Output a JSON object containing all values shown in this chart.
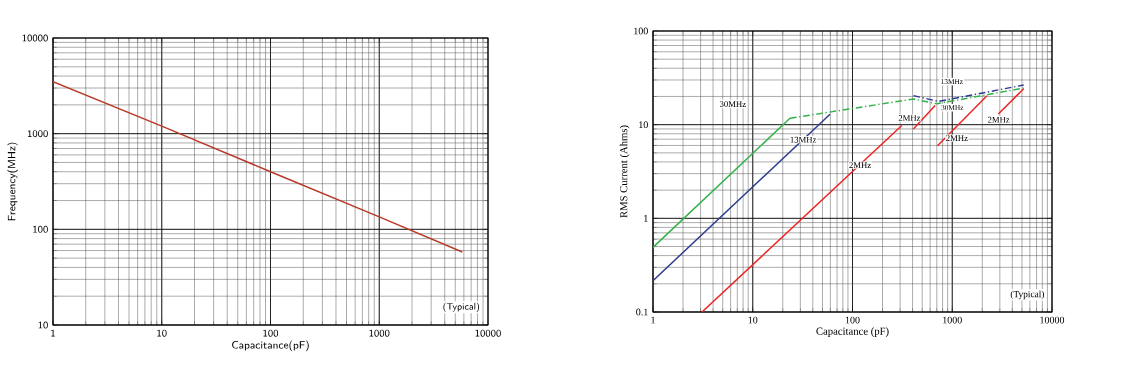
{
  "chart_data": [
    {
      "type": "line",
      "xlabel": "Capacitance(pF)",
      "ylabel": "Frequency(MHz)",
      "log": "xy",
      "grid": true,
      "xlim": [
        1,
        10000
      ],
      "ylim": [
        10,
        10000
      ],
      "xticks": [
        1,
        10,
        100,
        1000,
        10000
      ],
      "yticks": [
        10,
        100,
        1000,
        10000
      ],
      "series": [
        {
          "color": "#b83a26",
          "x": [
            1,
            10,
            100,
            1000,
            5800
          ],
          "values": [
            3500,
            1200,
            400,
            135,
            58
          ]
        }
      ],
      "annotations": [
        "(Typical)"
      ]
    },
    {
      "type": "line",
      "xlabel": "Capacitance (pF)",
      "ylabel": "RMS Current (Ahms)",
      "log": "xy",
      "grid": true,
      "xlim": [
        1,
        10000
      ],
      "ylim": [
        0.1,
        100
      ],
      "xticks": [
        1,
        10,
        100,
        1000,
        10000
      ],
      "yticks": [
        0.1,
        1,
        10,
        100
      ],
      "series": [
        {
          "color": "#33b24a",
          "x": [
            1,
            23.6
          ],
          "values": [
            0.49,
            11.7
          ]
        },
        {
          "color": "#33b24a",
          "line_style": "dashed",
          "x": [
            23.6,
            408,
            701,
            5200
          ],
          "values": [
            11.7,
            18.8,
            16.7,
            24.6
          ]
        },
        {
          "color": "#2b3a8c",
          "x": [
            1,
            59.5
          ],
          "values": [
            0.216,
            12.9
          ]
        },
        {
          "color": "#2b3a8c",
          "line_style": "dashed",
          "x": [
            408,
            728,
            5200
          ],
          "values": [
            20.4,
            17.7,
            26.5
          ]
        },
        {
          "color": "#ee2222",
          "x": [
            3.1,
            312
          ],
          "values": [
            0.1,
            9.8
          ]
        },
        {
          "color": "#ee2222",
          "x": [
            408,
            674
          ],
          "values": [
            9,
            16
          ]
        },
        {
          "color": "#ee2222",
          "x": [
            712,
            2230
          ],
          "values": [
            5.97,
            20.4
          ]
        },
        {
          "color": "#ee2222",
          "x": [
            2900,
            5200
          ],
          "values": [
            13,
            24.2
          ]
        }
      ],
      "annotations": [
        "30MHz",
        {
          "text": "13MHz",
          "x": 32,
          "y": 6.9
        },
        {
          "text": "2MHz",
          "x": 119,
          "y": 3.7
        },
        {
          "text": "2MHz",
          "x": 372,
          "y": 11.8
        },
        "13MHz",
        "30MHz",
        {
          "text": "2MHz",
          "x": 1112,
          "y": 7.2
        },
        {
          "text": "2MHz",
          "x": 2917,
          "y": 11.3
        },
        "(Typical)"
      ]
    }
  ]
}
